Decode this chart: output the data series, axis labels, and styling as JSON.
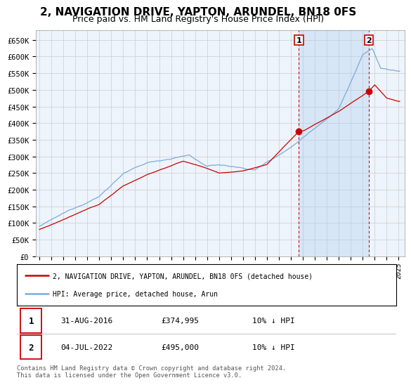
{
  "title": "2, NAVIGATION DRIVE, YAPTON, ARUNDEL, BN18 0FS",
  "subtitle": "Price paid vs. HM Land Registry's House Price Index (HPI)",
  "title_fontsize": 11,
  "subtitle_fontsize": 9,
  "hpi_color": "#7aaadd",
  "price_color": "#cc0000",
  "background_color": "#ffffff",
  "grid_color": "#cccccc",
  "plot_bg_color": "#ddeeff",
  "plot_bg_outside_color": "#eef4fb",
  "ylabel_ticks": [
    "£0",
    "£50K",
    "£100K",
    "£150K",
    "£200K",
    "£250K",
    "£300K",
    "£350K",
    "£400K",
    "£450K",
    "£500K",
    "£550K",
    "£600K",
    "£650K"
  ],
  "ytick_values": [
    0,
    50000,
    100000,
    150000,
    200000,
    250000,
    300000,
    350000,
    400000,
    450000,
    500000,
    550000,
    600000,
    650000
  ],
  "ylim": [
    0,
    680000
  ],
  "xlim_start": 1994.7,
  "xlim_end": 2025.5,
  "sale1_year": 2016.667,
  "sale1_price": 374995,
  "sale1_label": "1",
  "sale1_date": "31-AUG-2016",
  "sale1_hpi_pct": "10% ↓ HPI",
  "sale2_year": 2022.5,
  "sale2_price": 495000,
  "sale2_label": "2",
  "sale2_date": "04-JUL-2022",
  "sale2_hpi_pct": "10% ↓ HPI",
  "legend_label1": "2, NAVIGATION DRIVE, YAPTON, ARUNDEL, BN18 0FS (detached house)",
  "legend_label2": "HPI: Average price, detached house, Arun",
  "footer": "Contains HM Land Registry data © Crown copyright and database right 2024.\nThis data is licensed under the Open Government Licence v3.0.",
  "xtick_years": [
    1995,
    1996,
    1997,
    1998,
    1999,
    2000,
    2001,
    2002,
    2003,
    2004,
    2005,
    2006,
    2007,
    2008,
    2009,
    2010,
    2011,
    2012,
    2013,
    2014,
    2015,
    2016,
    2017,
    2018,
    2019,
    2020,
    2021,
    2022,
    2023,
    2024,
    2025
  ]
}
